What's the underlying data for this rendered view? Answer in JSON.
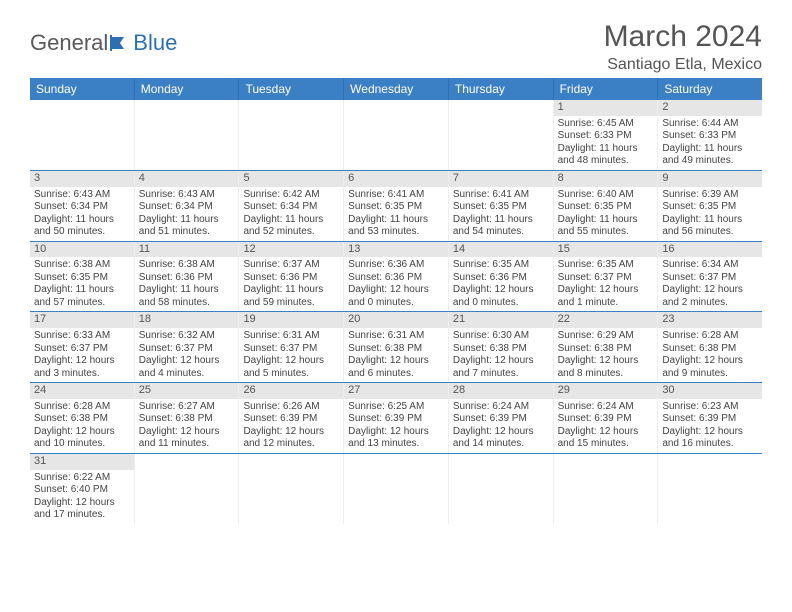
{
  "logo": {
    "text1": "General",
    "text2": "Blue"
  },
  "title": "March 2024",
  "location": "Santiago Etla, Mexico",
  "colors": {
    "header_bg": "#3b7fc4",
    "header_text": "#ffffff",
    "daynum_bg": "#e6e6e6",
    "row_border": "#3b7fc4",
    "text": "#444444",
    "title_text": "#555555"
  },
  "font": {
    "title_size": 30,
    "location_size": 16,
    "header_size": 12,
    "cell_size": 10
  },
  "day_names": [
    "Sunday",
    "Monday",
    "Tuesday",
    "Wednesday",
    "Thursday",
    "Friday",
    "Saturday"
  ],
  "weeks": [
    [
      null,
      null,
      null,
      null,
      null,
      {
        "n": "1",
        "sr": "Sunrise: 6:45 AM",
        "ss": "Sunset: 6:33 PM",
        "dl1": "Daylight: 11 hours",
        "dl2": "and 48 minutes."
      },
      {
        "n": "2",
        "sr": "Sunrise: 6:44 AM",
        "ss": "Sunset: 6:33 PM",
        "dl1": "Daylight: 11 hours",
        "dl2": "and 49 minutes."
      }
    ],
    [
      {
        "n": "3",
        "sr": "Sunrise: 6:43 AM",
        "ss": "Sunset: 6:34 PM",
        "dl1": "Daylight: 11 hours",
        "dl2": "and 50 minutes."
      },
      {
        "n": "4",
        "sr": "Sunrise: 6:43 AM",
        "ss": "Sunset: 6:34 PM",
        "dl1": "Daylight: 11 hours",
        "dl2": "and 51 minutes."
      },
      {
        "n": "5",
        "sr": "Sunrise: 6:42 AM",
        "ss": "Sunset: 6:34 PM",
        "dl1": "Daylight: 11 hours",
        "dl2": "and 52 minutes."
      },
      {
        "n": "6",
        "sr": "Sunrise: 6:41 AM",
        "ss": "Sunset: 6:35 PM",
        "dl1": "Daylight: 11 hours",
        "dl2": "and 53 minutes."
      },
      {
        "n": "7",
        "sr": "Sunrise: 6:41 AM",
        "ss": "Sunset: 6:35 PM",
        "dl1": "Daylight: 11 hours",
        "dl2": "and 54 minutes."
      },
      {
        "n": "8",
        "sr": "Sunrise: 6:40 AM",
        "ss": "Sunset: 6:35 PM",
        "dl1": "Daylight: 11 hours",
        "dl2": "and 55 minutes."
      },
      {
        "n": "9",
        "sr": "Sunrise: 6:39 AM",
        "ss": "Sunset: 6:35 PM",
        "dl1": "Daylight: 11 hours",
        "dl2": "and 56 minutes."
      }
    ],
    [
      {
        "n": "10",
        "sr": "Sunrise: 6:38 AM",
        "ss": "Sunset: 6:35 PM",
        "dl1": "Daylight: 11 hours",
        "dl2": "and 57 minutes."
      },
      {
        "n": "11",
        "sr": "Sunrise: 6:38 AM",
        "ss": "Sunset: 6:36 PM",
        "dl1": "Daylight: 11 hours",
        "dl2": "and 58 minutes."
      },
      {
        "n": "12",
        "sr": "Sunrise: 6:37 AM",
        "ss": "Sunset: 6:36 PM",
        "dl1": "Daylight: 11 hours",
        "dl2": "and 59 minutes."
      },
      {
        "n": "13",
        "sr": "Sunrise: 6:36 AM",
        "ss": "Sunset: 6:36 PM",
        "dl1": "Daylight: 12 hours",
        "dl2": "and 0 minutes."
      },
      {
        "n": "14",
        "sr": "Sunrise: 6:35 AM",
        "ss": "Sunset: 6:36 PM",
        "dl1": "Daylight: 12 hours",
        "dl2": "and 0 minutes."
      },
      {
        "n": "15",
        "sr": "Sunrise: 6:35 AM",
        "ss": "Sunset: 6:37 PM",
        "dl1": "Daylight: 12 hours",
        "dl2": "and 1 minute."
      },
      {
        "n": "16",
        "sr": "Sunrise: 6:34 AM",
        "ss": "Sunset: 6:37 PM",
        "dl1": "Daylight: 12 hours",
        "dl2": "and 2 minutes."
      }
    ],
    [
      {
        "n": "17",
        "sr": "Sunrise: 6:33 AM",
        "ss": "Sunset: 6:37 PM",
        "dl1": "Daylight: 12 hours",
        "dl2": "and 3 minutes."
      },
      {
        "n": "18",
        "sr": "Sunrise: 6:32 AM",
        "ss": "Sunset: 6:37 PM",
        "dl1": "Daylight: 12 hours",
        "dl2": "and 4 minutes."
      },
      {
        "n": "19",
        "sr": "Sunrise: 6:31 AM",
        "ss": "Sunset: 6:37 PM",
        "dl1": "Daylight: 12 hours",
        "dl2": "and 5 minutes."
      },
      {
        "n": "20",
        "sr": "Sunrise: 6:31 AM",
        "ss": "Sunset: 6:38 PM",
        "dl1": "Daylight: 12 hours",
        "dl2": "and 6 minutes."
      },
      {
        "n": "21",
        "sr": "Sunrise: 6:30 AM",
        "ss": "Sunset: 6:38 PM",
        "dl1": "Daylight: 12 hours",
        "dl2": "and 7 minutes."
      },
      {
        "n": "22",
        "sr": "Sunrise: 6:29 AM",
        "ss": "Sunset: 6:38 PM",
        "dl1": "Daylight: 12 hours",
        "dl2": "and 8 minutes."
      },
      {
        "n": "23",
        "sr": "Sunrise: 6:28 AM",
        "ss": "Sunset: 6:38 PM",
        "dl1": "Daylight: 12 hours",
        "dl2": "and 9 minutes."
      }
    ],
    [
      {
        "n": "24",
        "sr": "Sunrise: 6:28 AM",
        "ss": "Sunset: 6:38 PM",
        "dl1": "Daylight: 12 hours",
        "dl2": "and 10 minutes."
      },
      {
        "n": "25",
        "sr": "Sunrise: 6:27 AM",
        "ss": "Sunset: 6:38 PM",
        "dl1": "Daylight: 12 hours",
        "dl2": "and 11 minutes."
      },
      {
        "n": "26",
        "sr": "Sunrise: 6:26 AM",
        "ss": "Sunset: 6:39 PM",
        "dl1": "Daylight: 12 hours",
        "dl2": "and 12 minutes."
      },
      {
        "n": "27",
        "sr": "Sunrise: 6:25 AM",
        "ss": "Sunset: 6:39 PM",
        "dl1": "Daylight: 12 hours",
        "dl2": "and 13 minutes."
      },
      {
        "n": "28",
        "sr": "Sunrise: 6:24 AM",
        "ss": "Sunset: 6:39 PM",
        "dl1": "Daylight: 12 hours",
        "dl2": "and 14 minutes."
      },
      {
        "n": "29",
        "sr": "Sunrise: 6:24 AM",
        "ss": "Sunset: 6:39 PM",
        "dl1": "Daylight: 12 hours",
        "dl2": "and 15 minutes."
      },
      {
        "n": "30",
        "sr": "Sunrise: 6:23 AM",
        "ss": "Sunset: 6:39 PM",
        "dl1": "Daylight: 12 hours",
        "dl2": "and 16 minutes."
      }
    ],
    [
      {
        "n": "31",
        "sr": "Sunrise: 6:22 AM",
        "ss": "Sunset: 6:40 PM",
        "dl1": "Daylight: 12 hours",
        "dl2": "and 17 minutes."
      },
      null,
      null,
      null,
      null,
      null,
      null
    ]
  ]
}
